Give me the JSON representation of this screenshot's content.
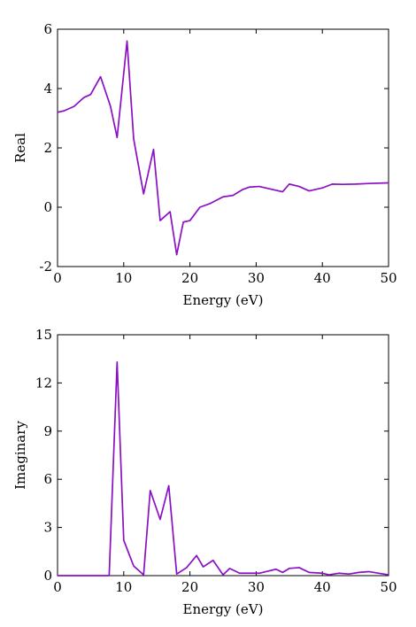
{
  "chart_data": [
    {
      "type": "line",
      "xlabel": "Energy (eV)",
      "ylabel": "Real",
      "xlim": [
        0,
        50
      ],
      "ylim": [
        -2,
        6
      ],
      "xticks": [
        "0",
        "10",
        "20",
        "30",
        "40",
        "50"
      ],
      "yticks": [
        "-2",
        "0",
        "2",
        "4",
        "6"
      ],
      "grid": false,
      "color": "#8b0fc4",
      "series": [
        {
          "x": [
            0,
            1,
            2.5,
            4,
            5,
            6.5,
            8,
            9,
            10.5,
            11.5,
            13,
            14.5,
            15.5,
            17,
            18,
            19,
            20,
            21.5,
            23,
            25,
            26.5,
            28,
            29,
            30.5,
            32,
            34,
            35,
            36.5,
            38,
            40,
            41.5,
            43,
            45,
            47,
            50
          ],
          "y": [
            3.2,
            3.25,
            3.4,
            3.7,
            3.8,
            4.4,
            3.4,
            2.35,
            5.6,
            2.3,
            0.45,
            1.95,
            -0.45,
            -0.15,
            -1.6,
            -0.5,
            -0.45,
            0.0,
            0.12,
            0.35,
            0.4,
            0.6,
            0.68,
            0.7,
            0.62,
            0.52,
            0.78,
            0.7,
            0.55,
            0.65,
            0.78,
            0.77,
            0.78,
            0.8,
            0.82
          ]
        }
      ]
    },
    {
      "type": "line",
      "xlabel": "Energy (eV)",
      "ylabel": "Imaginary",
      "xlim": [
        0,
        50
      ],
      "ylim": [
        0,
        15
      ],
      "xticks": [
        "0",
        "10",
        "20",
        "30",
        "40",
        "50"
      ],
      "yticks": [
        "0",
        "3",
        "6",
        "9",
        "12",
        "15"
      ],
      "grid": false,
      "color": "#8b0fc4",
      "series": [
        {
          "x": [
            0,
            2,
            4,
            6,
            7.8,
            9,
            10,
            11.5,
            13,
            14,
            15.5,
            16.8,
            18,
            19.5,
            21,
            22,
            23.5,
            25,
            26,
            27.5,
            29,
            30.5,
            31.5,
            33,
            34,
            35,
            36.5,
            38,
            40,
            41,
            42.5,
            44,
            45.5,
            47,
            48.5,
            50
          ],
          "y": [
            0,
            0,
            0,
            0,
            0,
            13.3,
            2.2,
            0.6,
            0.05,
            5.3,
            3.5,
            5.6,
            0.1,
            0.5,
            1.25,
            0.55,
            0.95,
            0.05,
            0.45,
            0.15,
            0.15,
            0.15,
            0.25,
            0.4,
            0.2,
            0.45,
            0.5,
            0.2,
            0.15,
            0.05,
            0.15,
            0.1,
            0.2,
            0.25,
            0.15,
            0.05
          ]
        }
      ]
    }
  ]
}
